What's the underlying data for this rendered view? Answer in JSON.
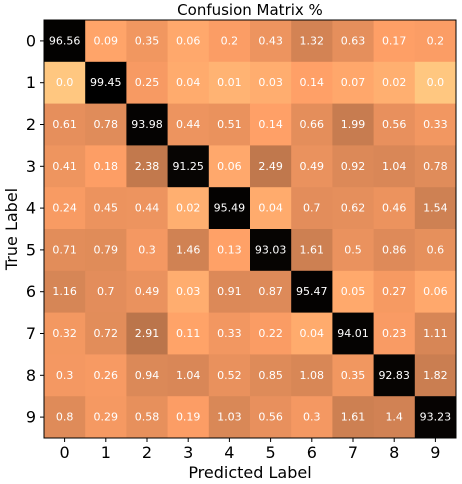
{
  "chart_data": {
    "type": "heatmap",
    "title": "Confusion Matrix %",
    "xlabel": "Predicted Label",
    "ylabel": "True Label",
    "x_categories": [
      "0",
      "1",
      "2",
      "3",
      "4",
      "5",
      "6",
      "7",
      "8",
      "9"
    ],
    "y_categories": [
      "0",
      "1",
      "2",
      "3",
      "4",
      "5",
      "6",
      "7",
      "8",
      "9"
    ],
    "colormap": "copper",
    "values": [
      [
        96.56,
        0.09,
        0.35,
        0.06,
        0.2,
        0.43,
        1.32,
        0.63,
        0.17,
        0.2
      ],
      [
        0.0,
        99.45,
        0.25,
        0.04,
        0.01,
        0.03,
        0.14,
        0.07,
        0.02,
        0.0
      ],
      [
        0.61,
        0.78,
        93.98,
        0.44,
        0.51,
        0.14,
        0.66,
        1.99,
        0.56,
        0.33
      ],
      [
        0.41,
        0.18,
        2.38,
        91.25,
        0.06,
        2.49,
        0.49,
        0.92,
        1.04,
        0.78
      ],
      [
        0.24,
        0.45,
        0.44,
        0.02,
        95.49,
        0.04,
        0.7,
        0.62,
        0.46,
        1.54
      ],
      [
        0.71,
        0.79,
        0.3,
        1.46,
        0.13,
        93.03,
        1.61,
        0.5,
        0.86,
        0.6
      ],
      [
        1.16,
        0.7,
        0.49,
        0.03,
        0.91,
        0.87,
        95.47,
        0.05,
        0.27,
        0.06
      ],
      [
        0.32,
        0.72,
        2.91,
        0.11,
        0.33,
        0.22,
        0.04,
        94.01,
        0.23,
        1.11
      ],
      [
        0.3,
        0.26,
        0.94,
        1.04,
        0.52,
        0.85,
        1.08,
        0.35,
        92.83,
        1.82
      ],
      [
        0.8,
        0.29,
        0.58,
        0.19,
        1.03,
        0.56,
        0.3,
        1.61,
        1.4,
        93.23
      ]
    ],
    "value_labels": [
      [
        "96.56",
        "0.09",
        "0.35",
        "0.06",
        "0.2",
        "0.43",
        "1.32",
        "0.63",
        "0.17",
        "0.2"
      ],
      [
        "0.0",
        "99.45",
        "0.25",
        "0.04",
        "0.01",
        "0.03",
        "0.14",
        "0.07",
        "0.02",
        "0.0"
      ],
      [
        "0.61",
        "0.78",
        "93.98",
        "0.44",
        "0.51",
        "0.14",
        "0.66",
        "1.99",
        "0.56",
        "0.33"
      ],
      [
        "0.41",
        "0.18",
        "2.38",
        "91.25",
        "0.06",
        "2.49",
        "0.49",
        "0.92",
        "1.04",
        "0.78"
      ],
      [
        "0.24",
        "0.45",
        "0.44",
        "0.02",
        "95.49",
        "0.04",
        "0.7",
        "0.62",
        "0.46",
        "1.54"
      ],
      [
        "0.71",
        "0.79",
        "0.3",
        "1.46",
        "0.13",
        "93.03",
        "1.61",
        "0.5",
        "0.86",
        "0.6"
      ],
      [
        "1.16",
        "0.7",
        "0.49",
        "0.03",
        "0.91",
        "0.87",
        "95.47",
        "0.05",
        "0.27",
        "0.06"
      ],
      [
        "0.32",
        "0.72",
        "2.91",
        "0.11",
        "0.33",
        "0.22",
        "0.04",
        "94.01",
        "0.23",
        "1.11"
      ],
      [
        "0.3",
        "0.26",
        "0.94",
        "1.04",
        "0.52",
        "0.85",
        "1.08",
        "0.35",
        "92.83",
        "1.82"
      ],
      [
        "0.8",
        "0.29",
        "0.58",
        "0.19",
        "1.03",
        "0.56",
        "0.3",
        "1.61",
        "1.4",
        "93.23"
      ]
    ],
    "grid": false,
    "legend": "none"
  }
}
